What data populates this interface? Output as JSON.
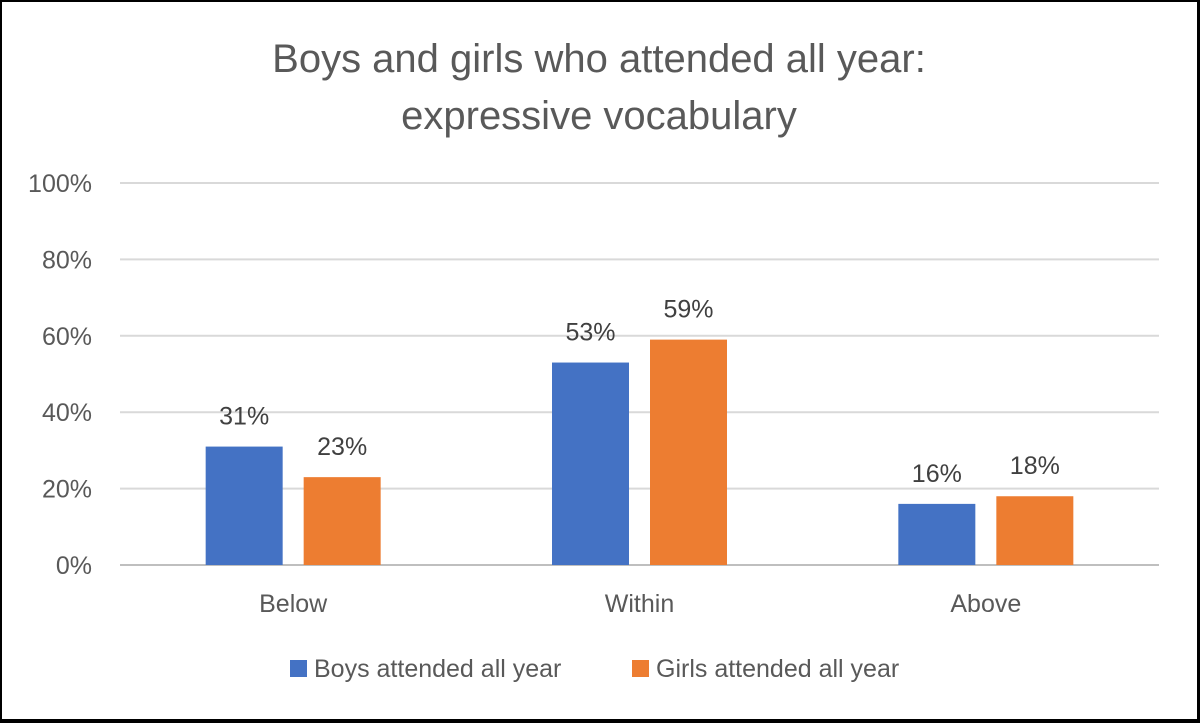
{
  "chart_data": {
    "type": "bar",
    "title_lines": [
      "Boys and girls who attended all year:",
      "expressive vocabulary"
    ],
    "categories": [
      "Below",
      "Within",
      "Above"
    ],
    "series": [
      {
        "name": "Boys attended all year",
        "color": "#4472C4",
        "values": [
          31,
          53,
          16
        ],
        "labels": [
          "31%",
          "53%",
          "16%"
        ]
      },
      {
        "name": "Girls attended all year",
        "color": "#ED7D31",
        "values": [
          23,
          59,
          18
        ],
        "labels": [
          "23%",
          "59%",
          "18%"
        ]
      }
    ],
    "y_ticks": [
      0,
      20,
      40,
      60,
      80,
      100
    ],
    "y_tick_labels": [
      "0%",
      "20%",
      "40%",
      "60%",
      "80%",
      "100%"
    ],
    "ylim": [
      0,
      100
    ],
    "grid": true,
    "legend_position": "bottom",
    "colors": {
      "text": "#595959",
      "label": "#404040",
      "grid": "#d9d9d9",
      "axis": "#bfbfbf"
    }
  }
}
